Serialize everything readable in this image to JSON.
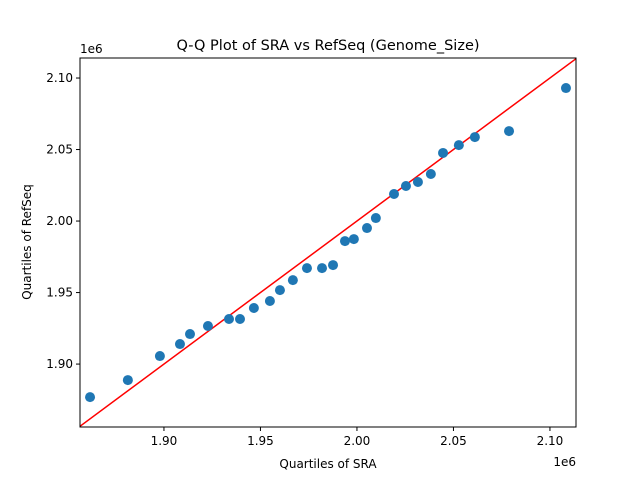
{
  "chart_data": {
    "type": "scatter",
    "title": "Q-Q Plot of SRA vs RefSeq (Genome_Size)",
    "xlabel": "Quartiles of SRA",
    "ylabel": "Quartiles of RefSeq",
    "x_offset_label": "1e6",
    "y_offset_label": "1e6",
    "xlim": [
      1.8565,
      2.1135
    ],
    "ylim": [
      1.856,
      2.114
    ],
    "xticks": [
      1.9,
      1.95,
      2.0,
      2.05,
      2.1
    ],
    "xtick_labels": [
      "1.90",
      "1.95",
      "2.00",
      "2.05",
      "2.10"
    ],
    "yticks": [
      1.9,
      1.95,
      2.0,
      2.05,
      2.1
    ],
    "ytick_labels": [
      "1.90",
      "1.95",
      "2.00",
      "2.05",
      "2.10"
    ],
    "grid": false,
    "point_color": "#1f77b4",
    "reference_line": {
      "slope": 1,
      "intercept": 0,
      "color": "#ff0000"
    },
    "x": [
      1.8617,
      1.8813,
      1.8979,
      1.9083,
      1.9135,
      1.9228,
      1.9337,
      1.9394,
      1.9466,
      1.9549,
      1.9601,
      1.9668,
      1.9741,
      1.9819,
      1.9876,
      1.9938,
      1.9984,
      2.0052,
      2.0098,
      2.0192,
      2.0254,
      2.0316,
      2.0383,
      2.0446,
      2.0528,
      2.0611,
      2.0788,
      2.1083
    ],
    "y": [
      1.8769,
      1.8888,
      1.9056,
      1.914,
      1.921,
      1.9266,
      1.9315,
      1.9315,
      1.9392,
      1.9441,
      1.9517,
      1.9587,
      1.9671,
      1.9671,
      1.9692,
      1.986,
      1.9874,
      1.9951,
      2.0021,
      2.0189,
      2.0245,
      2.0273,
      2.0329,
      2.0476,
      2.0531,
      2.0587,
      2.0629,
      2.093
    ]
  }
}
